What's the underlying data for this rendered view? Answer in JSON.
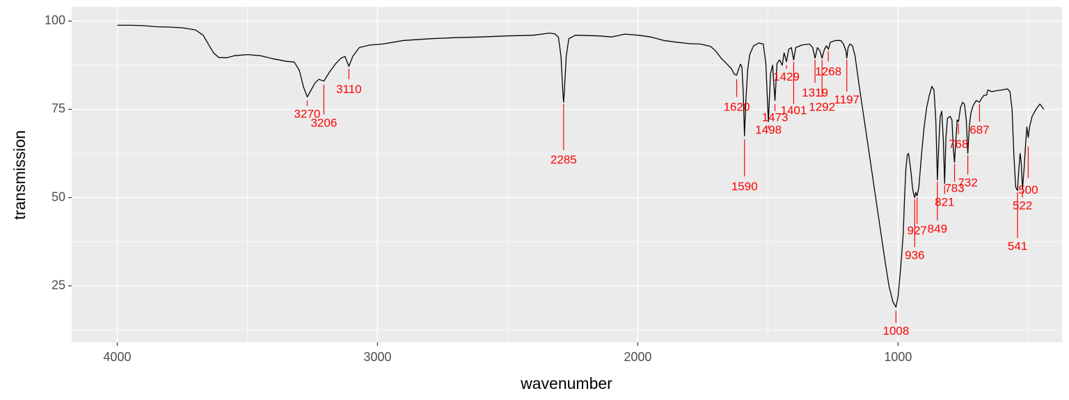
{
  "chart_data": {
    "type": "line",
    "title": "",
    "xlabel": "wavenumber",
    "ylabel": "transmission",
    "x_reversed": true,
    "xlim": [
      4175,
      370
    ],
    "ylim": [
      9,
      104
    ],
    "x_ticks": [
      4000,
      3000,
      2000,
      1000
    ],
    "x_tick_labels": [
      "4000",
      "3000",
      "2000",
      "1000"
    ],
    "x_minor_ticks": [
      3500,
      2500,
      1500,
      500
    ],
    "y_ticks": [
      25,
      50,
      75,
      100
    ],
    "y_tick_labels": [
      "25",
      "50",
      "75",
      "100"
    ],
    "y_minor_ticks": [
      12.5,
      37.5,
      62.5,
      87.5
    ],
    "grid": true,
    "colors": {
      "panel_background": "#ebebeb",
      "grid": "#ffffff",
      "line": "#000000",
      "annotation": "#ff0000",
      "tick_label": "#4d4d4d",
      "tick_mark": "#333333"
    },
    "series": [
      {
        "points": [
          [
            4000,
            98.8
          ],
          [
            3950,
            98.8
          ],
          [
            3900,
            98.7
          ],
          [
            3850,
            98.4
          ],
          [
            3800,
            98.3
          ],
          [
            3750,
            98.1
          ],
          [
            3700,
            97.5
          ],
          [
            3670,
            96.0
          ],
          [
            3650,
            93.5
          ],
          [
            3630,
            91.0
          ],
          [
            3610,
            89.7
          ],
          [
            3580,
            89.6
          ],
          [
            3550,
            90.2
          ],
          [
            3500,
            90.5
          ],
          [
            3450,
            90.2
          ],
          [
            3400,
            89.3
          ],
          [
            3350,
            88.6
          ],
          [
            3320,
            88.4
          ],
          [
            3300,
            86.0
          ],
          [
            3285,
            81.5
          ],
          [
            3270,
            78.5
          ],
          [
            3255,
            80.5
          ],
          [
            3240,
            82.5
          ],
          [
            3225,
            83.5
          ],
          [
            3206,
            83.0
          ],
          [
            3185,
            85.5
          ],
          [
            3160,
            88.0
          ],
          [
            3140,
            89.5
          ],
          [
            3125,
            90.0
          ],
          [
            3110,
            87.2
          ],
          [
            3095,
            90.0
          ],
          [
            3070,
            92.5
          ],
          [
            3030,
            93.2
          ],
          [
            2980,
            93.5
          ],
          [
            2900,
            94.5
          ],
          [
            2800,
            95.0
          ],
          [
            2700,
            95.3
          ],
          [
            2600,
            95.5
          ],
          [
            2500,
            95.8
          ],
          [
            2400,
            96.0
          ],
          [
            2340,
            96.6
          ],
          [
            2320,
            96.4
          ],
          [
            2305,
            95.5
          ],
          [
            2295,
            90.0
          ],
          [
            2288,
            80.0
          ],
          [
            2285,
            77.0
          ],
          [
            2282,
            80.0
          ],
          [
            2275,
            90.0
          ],
          [
            2265,
            95.0
          ],
          [
            2240,
            96.0
          ],
          [
            2150,
            95.8
          ],
          [
            2100,
            95.5
          ],
          [
            2050,
            96.3
          ],
          [
            2000,
            96.0
          ],
          [
            1950,
            95.5
          ],
          [
            1900,
            94.5
          ],
          [
            1850,
            94.0
          ],
          [
            1800,
            93.6
          ],
          [
            1760,
            93.5
          ],
          [
            1720,
            92.8
          ],
          [
            1700,
            91.5
          ],
          [
            1680,
            89.5
          ],
          [
            1660,
            88.0
          ],
          [
            1640,
            86.5
          ],
          [
            1630,
            85.0
          ],
          [
            1620,
            84.7
          ],
          [
            1612,
            86.5
          ],
          [
            1605,
            87.8
          ],
          [
            1600,
            87.0
          ],
          [
            1595,
            80.0
          ],
          [
            1590,
            67.5
          ],
          [
            1585,
            77.0
          ],
          [
            1578,
            86.0
          ],
          [
            1570,
            90.5
          ],
          [
            1555,
            93.0
          ],
          [
            1535,
            93.8
          ],
          [
            1518,
            93.5
          ],
          [
            1508,
            88.0
          ],
          [
            1498,
            71.5
          ],
          [
            1490,
            85.0
          ],
          [
            1482,
            87.5
          ],
          [
            1473,
            77.5
          ],
          [
            1465,
            88.0
          ],
          [
            1455,
            89.0
          ],
          [
            1445,
            87.5
          ],
          [
            1438,
            91.0
          ],
          [
            1429,
            88.5
          ],
          [
            1420,
            92.0
          ],
          [
            1410,
            92.5
          ],
          [
            1401,
            89.0
          ],
          [
            1393,
            92.5
          ],
          [
            1370,
            93.2
          ],
          [
            1340,
            93.5
          ],
          [
            1328,
            92.5
          ],
          [
            1319,
            89.5
          ],
          [
            1310,
            92.5
          ],
          [
            1300,
            91.5
          ],
          [
            1292,
            89.5
          ],
          [
            1283,
            92.0
          ],
          [
            1275,
            93.0
          ],
          [
            1268,
            92.0
          ],
          [
            1260,
            94.0
          ],
          [
            1240,
            94.5
          ],
          [
            1220,
            94.5
          ],
          [
            1210,
            93.5
          ],
          [
            1200,
            91.5
          ],
          [
            1197,
            89.5
          ],
          [
            1192,
            92.5
          ],
          [
            1185,
            93.5
          ],
          [
            1175,
            93.0
          ],
          [
            1165,
            90.0
          ],
          [
            1150,
            82.0
          ],
          [
            1130,
            72.0
          ],
          [
            1110,
            62.0
          ],
          [
            1090,
            52.0
          ],
          [
            1070,
            42.0
          ],
          [
            1050,
            32.0
          ],
          [
            1035,
            25.0
          ],
          [
            1020,
            20.5
          ],
          [
            1008,
            19.0
          ],
          [
            1000,
            22.0
          ],
          [
            990,
            30.0
          ],
          [
            980,
            40.0
          ],
          [
            975,
            50.0
          ],
          [
            970,
            58.0
          ],
          [
            965,
            62.0
          ],
          [
            960,
            62.5
          ],
          [
            955,
            60.0
          ],
          [
            950,
            57.0
          ],
          [
            945,
            53.0
          ],
          [
            940,
            51.0
          ],
          [
            936,
            50.0
          ],
          [
            932,
            51.5
          ],
          [
            927,
            50.5
          ],
          [
            920,
            53.0
          ],
          [
            910,
            62.0
          ],
          [
            900,
            70.0
          ],
          [
            890,
            75.5
          ],
          [
            880,
            79.0
          ],
          [
            870,
            81.5
          ],
          [
            862,
            80.5
          ],
          [
            855,
            72.0
          ],
          [
            849,
            55.0
          ],
          [
            843,
            66.0
          ],
          [
            838,
            73.0
          ],
          [
            832,
            74.5
          ],
          [
            826,
            66.0
          ],
          [
            821,
            54.0
          ],
          [
            816,
            67.0
          ],
          [
            810,
            72.5
          ],
          [
            800,
            73.0
          ],
          [
            793,
            72.0
          ],
          [
            788,
            64.0
          ],
          [
            783,
            60.0
          ],
          [
            778,
            66.0
          ],
          [
            773,
            72.0
          ],
          [
            768,
            71.5
          ],
          [
            760,
            75.5
          ],
          [
            752,
            77.0
          ],
          [
            745,
            76.5
          ],
          [
            738,
            72.0
          ],
          [
            732,
            62.5
          ],
          [
            726,
            70.5
          ],
          [
            720,
            74.0
          ],
          [
            712,
            76.0
          ],
          [
            700,
            77.5
          ],
          [
            687,
            77.0
          ],
          [
            680,
            78.0
          ],
          [
            670,
            79.0
          ],
          [
            660,
            79.0
          ],
          [
            655,
            80.5
          ],
          [
            640,
            80.0
          ],
          [
            620,
            80.3
          ],
          [
            600,
            80.5
          ],
          [
            580,
            80.8
          ],
          [
            570,
            80.0
          ],
          [
            562,
            75.0
          ],
          [
            555,
            62.0
          ],
          [
            548,
            53.0
          ],
          [
            541,
            52.0
          ],
          [
            536,
            58.0
          ],
          [
            531,
            62.5
          ],
          [
            527,
            60.0
          ],
          [
            522,
            52.5
          ],
          [
            516,
            58.0
          ],
          [
            510,
            65.0
          ],
          [
            505,
            70.0
          ],
          [
            500,
            67.0
          ],
          [
            495,
            70.0
          ],
          [
            485,
            73.0
          ],
          [
            470,
            75.0
          ],
          [
            455,
            76.5
          ],
          [
            440,
            75.0
          ]
        ]
      }
    ],
    "annotations": [
      {
        "label": "3270",
        "x": 3270,
        "y_top": 77.5,
        "y_bottom": 76.0,
        "label_y": 73.5
      },
      {
        "label": "3206",
        "x": 3206,
        "y_top": 82.0,
        "y_bottom": 73.5,
        "label_y": 71.0
      },
      {
        "label": "3110",
        "x": 3110,
        "y_top": 86.5,
        "y_bottom": 83.5,
        "label_y": 80.5
      },
      {
        "label": "2285",
        "x": 2285,
        "y_top": 76.5,
        "y_bottom": 63.5,
        "label_y": 60.5
      },
      {
        "label": "1620",
        "x": 1620,
        "y_top": 83.5,
        "y_bottom": 78.5,
        "label_y": 75.5
      },
      {
        "label": "1590",
        "x": 1590,
        "y_top": 66.5,
        "y_bottom": 56.0,
        "label_y": 53.0
      },
      {
        "label": "1498",
        "x": 1498,
        "y_top": 70.5,
        "y_bottom": 69.5,
        "label_y": 69.0
      },
      {
        "label": "1473",
        "x": 1473,
        "y_top": 76.5,
        "y_bottom": 74.5,
        "label_y": 72.5
      },
      {
        "label": "1429",
        "x": 1429,
        "y_top": 87.5,
        "y_bottom": 86.5,
        "label_y": 84.0
      },
      {
        "label": "1401",
        "x": 1401,
        "y_top": 88.5,
        "y_bottom": 76.5,
        "label_y": 74.5
      },
      {
        "label": "1319",
        "x": 1319,
        "y_top": 89.0,
        "y_bottom": 82.5,
        "label_y": 79.5
      },
      {
        "label": "1292",
        "x": 1292,
        "y_top": 89.0,
        "y_bottom": 78.5,
        "label_y": 75.5
      },
      {
        "label": "1268",
        "x": 1268,
        "y_top": 91.5,
        "y_bottom": 88.5,
        "label_y": 85.5
      },
      {
        "label": "1197",
        "x": 1197,
        "y_top": 89.0,
        "y_bottom": 80.0,
        "label_y": 77.5
      },
      {
        "label": "1008",
        "x": 1008,
        "y_top": 18.0,
        "y_bottom": 14.5,
        "label_y": 12.0
      },
      {
        "label": "936",
        "x": 936,
        "y_top": 49.5,
        "y_bottom": 36.0,
        "label_y": 33.5
      },
      {
        "label": "927",
        "x": 927,
        "y_top": 50.0,
        "y_bottom": 42.5,
        "label_y": 40.5
      },
      {
        "label": "849",
        "x": 849,
        "y_top": 54.5,
        "y_bottom": 43.5,
        "label_y": 41.0
      },
      {
        "label": "821",
        "x": 821,
        "y_top": 53.5,
        "y_bottom": 51.0,
        "label_y": 48.5
      },
      {
        "label": "783",
        "x": 783,
        "y_top": 59.5,
        "y_bottom": 54.5,
        "label_y": 52.5
      },
      {
        "label": "768",
        "x": 768,
        "y_top": 71.0,
        "y_bottom": 68.0,
        "label_y": 65.0
      },
      {
        "label": "732",
        "x": 732,
        "y_top": 62.0,
        "y_bottom": 56.5,
        "label_y": 54.0
      },
      {
        "label": "687",
        "x": 687,
        "y_top": 76.5,
        "y_bottom": 71.5,
        "label_y": 69.0
      },
      {
        "label": "541",
        "x": 541,
        "y_top": 51.5,
        "y_bottom": 38.5,
        "label_y": 36.0
      },
      {
        "label": "522",
        "x": 522,
        "y_top": 52.0,
        "y_bottom": 50.0,
        "label_y": 47.5
      },
      {
        "label": "500",
        "x": 500,
        "y_top": 64.5,
        "y_bottom": 55.5,
        "label_y": 52.0
      }
    ]
  }
}
